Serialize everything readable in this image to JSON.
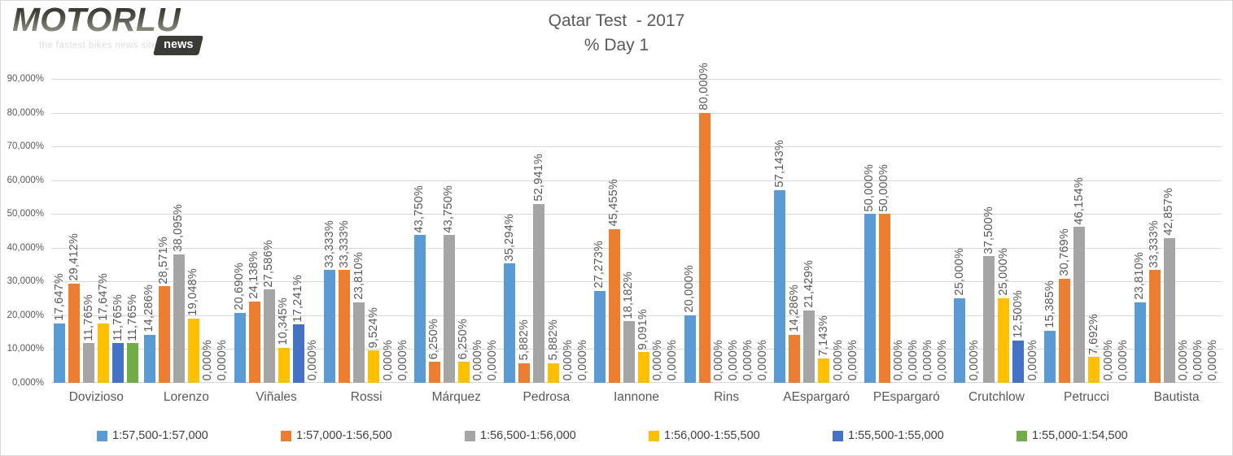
{
  "logo": {
    "brand": "MOTORLU",
    "badge": "news",
    "tagline": "the fastest bikes news site"
  },
  "title": {
    "line1": "Qatar Test  - 2017",
    "line2": "% Day 1"
  },
  "chart_data": {
    "type": "bar",
    "title": "Qatar Test  - 2017",
    "subtitle": "% Day 1",
    "categories": [
      "Dovizioso",
      "Lorenzo",
      "Viñales",
      "Rossi",
      "Márquez",
      "Pedrosa",
      "Iannone",
      "Rins",
      "AEspargaró",
      "PEspargaró",
      "Crutchlow",
      "Petrucci",
      "Bautista"
    ],
    "series": [
      {
        "name": "1:57,500-1:57,000",
        "color": "#5B9BD5",
        "values": [
          17.647,
          14.286,
          20.69,
          33.333,
          43.75,
          35.294,
          27.273,
          20.0,
          57.143,
          50.0,
          25.0,
          15.385,
          23.81
        ]
      },
      {
        "name": "1:57,000-1:56,500",
        "color": "#ED7D31",
        "values": [
          29.412,
          28.571,
          24.138,
          33.333,
          6.25,
          5.882,
          45.455,
          80.0,
          14.286,
          50.0,
          0.0,
          30.769,
          33.333
        ]
      },
      {
        "name": "1:56,500-1:56,000",
        "color": "#A5A5A5",
        "values": [
          11.765,
          38.095,
          27.586,
          23.81,
          43.75,
          52.941,
          18.182,
          0.0,
          21.429,
          0.0,
          37.5,
          46.154,
          42.857
        ]
      },
      {
        "name": "1:56,000-1:55,500",
        "color": "#FFC000",
        "values": [
          17.647,
          19.048,
          10.345,
          9.524,
          6.25,
          5.882,
          9.091,
          0.0,
          7.143,
          0.0,
          25.0,
          7.692,
          0.0
        ]
      },
      {
        "name": "1:55,500-1:55,000",
        "color": "#4472C4",
        "values": [
          11.765,
          0.0,
          17.241,
          0.0,
          0.0,
          0.0,
          0.0,
          0.0,
          0.0,
          0.0,
          12.5,
          0.0,
          0.0
        ]
      },
      {
        "name": "1:55,000-1:54,500",
        "color": "#70AD47",
        "values": [
          11.765,
          0.0,
          0.0,
          0.0,
          0.0,
          0.0,
          0.0,
          0.0,
          0.0,
          0.0,
          0.0,
          0.0,
          0.0
        ]
      }
    ],
    "xlabel": "",
    "ylabel": "",
    "ylim": [
      0,
      90
    ],
    "yticks": [
      "0,000%",
      "10,000%",
      "20,000%",
      "30,000%",
      "40,000%",
      "50,000%",
      "60,000%",
      "70,000%",
      "80,000%",
      "90,000%"
    ],
    "value_label_format": "comma-decimal 3dp with % (e.g. 17,647%)",
    "grid": true,
    "legend_position": "bottom"
  }
}
